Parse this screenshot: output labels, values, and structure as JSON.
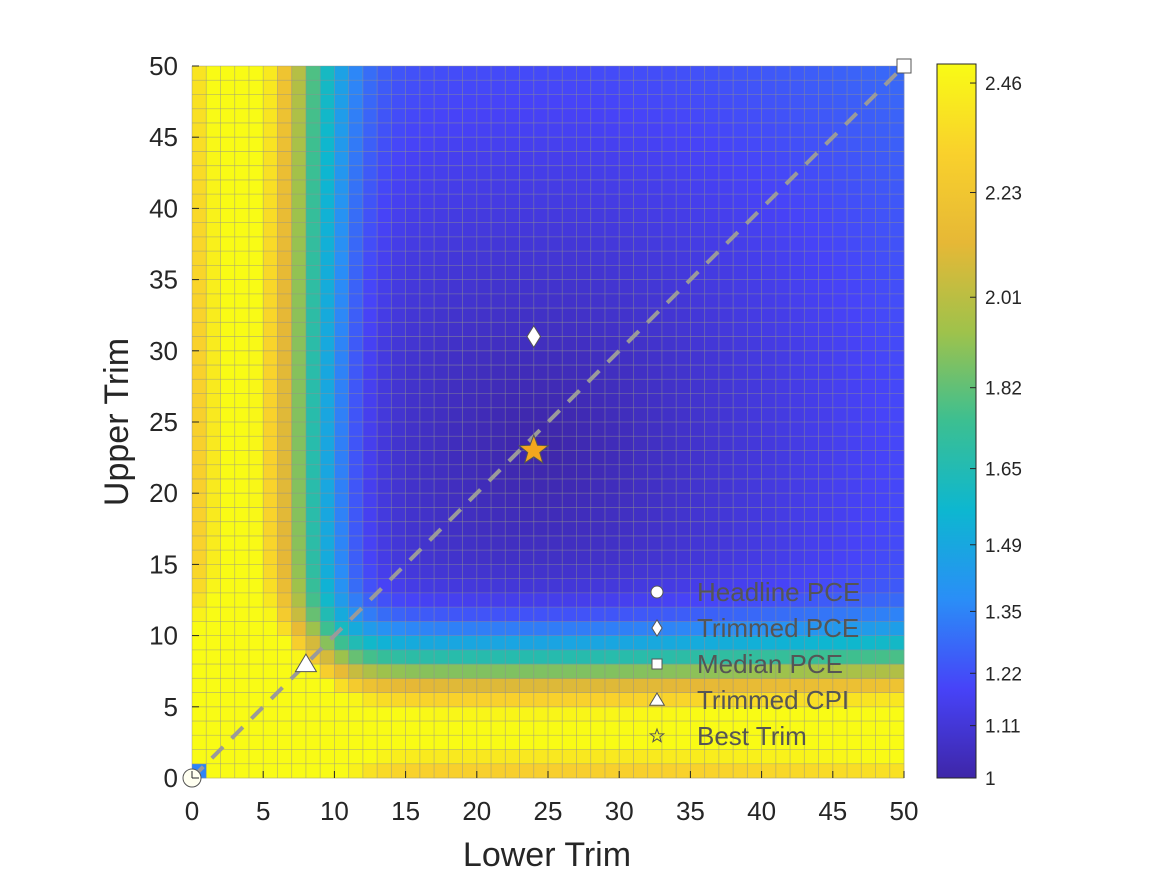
{
  "chart_data": {
    "type": "heatmap",
    "title": "",
    "xlabel": "Lower Trim",
    "ylabel": "Upper Trim",
    "xlim": [
      0,
      50
    ],
    "ylim": [
      0,
      50
    ],
    "x_ticks": [
      0,
      5,
      10,
      15,
      20,
      25,
      30,
      35,
      40,
      45,
      50
    ],
    "y_ticks": [
      0,
      5,
      10,
      15,
      20,
      25,
      30,
      35,
      40,
      45,
      50
    ],
    "x_tick_labels": [
      "0",
      "5",
      "10",
      "15",
      "20",
      "25",
      "30",
      "35",
      "40",
      "45",
      "50"
    ],
    "y_tick_labels": [
      "0",
      "5",
      "10",
      "15",
      "20",
      "25",
      "30",
      "35",
      "40",
      "45",
      "50"
    ],
    "grid_step": 1,
    "colorbar": {
      "min": 1,
      "max": 2.5,
      "ticks": [
        1,
        1.11,
        1.22,
        1.35,
        1.49,
        1.65,
        1.82,
        2.01,
        2.23,
        2.46
      ],
      "tick_labels": [
        "1",
        "1.11",
        "1.22",
        "1.35",
        "1.49",
        "1.65",
        "1.82",
        "2.01",
        "2.23",
        "2.46"
      ],
      "colormap": [
        "#3e26a8",
        "#4743f8",
        "#2a8ef7",
        "#0db7d0",
        "#3cbf91",
        "#9fc24b",
        "#e6b836",
        "#f9d12c",
        "#f9fb15"
      ]
    },
    "surface_model": "approximate: RMSE minimized near the diagonal around (24, 23); rises steeply near 0 trim on either side",
    "reference_line": {
      "name": "diagonal",
      "x": [
        0,
        50
      ],
      "y": [
        0,
        50
      ],
      "style": "dashed",
      "color": "#9a9a9a"
    },
    "markers": [
      {
        "name": "Headline PCE",
        "shape": "circle",
        "x": 0,
        "y": 0,
        "color": "#fffff0"
      },
      {
        "name": "Trimmed PCE",
        "shape": "diamond",
        "x": 24,
        "y": 31,
        "color": "#ffffff"
      },
      {
        "name": "Median PCE",
        "shape": "square",
        "x": 50,
        "y": 50,
        "color": "#ffffff"
      },
      {
        "name": "Trimmed CPI",
        "shape": "triangle",
        "x": 8,
        "y": 8,
        "color": "#ffffff"
      },
      {
        "name": "Best Trim",
        "shape": "star",
        "x": 24,
        "y": 23,
        "color": "#f4a71d"
      }
    ],
    "legend": {
      "position": "bottom-right",
      "entries": [
        "Headline PCE",
        "Trimmed PCE",
        "Median PCE",
        "Trimmed CPI",
        "Best Trim"
      ]
    }
  }
}
